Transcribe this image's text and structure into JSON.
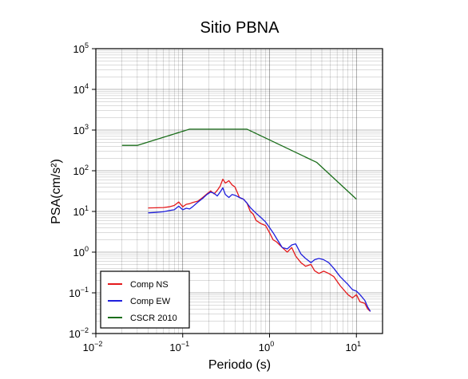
{
  "chart_data": {
    "type": "line",
    "title": "Sitio PBNA",
    "xlabel": "Periodo (s)",
    "ylabel": "PSA(cm/s²)",
    "x_scale": "log",
    "y_scale": "log",
    "xlim": [
      0.01,
      20
    ],
    "ylim": [
      0.01,
      100000
    ],
    "x_ticks": [
      {
        "value": 0.01,
        "base": "10",
        "exp": "−2"
      },
      {
        "value": 0.1,
        "base": "10",
        "exp": "−1"
      },
      {
        "value": 1,
        "base": "10",
        "exp": "0"
      },
      {
        "value": 10,
        "base": "10",
        "exp": "1"
      }
    ],
    "y_ticks": [
      {
        "value": 0.01,
        "base": "10",
        "exp": "−2"
      },
      {
        "value": 0.1,
        "base": "10",
        "exp": "−1"
      },
      {
        "value": 1,
        "base": "10",
        "exp": "0"
      },
      {
        "value": 10,
        "base": "10",
        "exp": "1"
      },
      {
        "value": 100,
        "base": "10",
        "exp": "2"
      },
      {
        "value": 1000,
        "base": "10",
        "exp": "3"
      },
      {
        "value": 10000,
        "base": "10",
        "exp": "4"
      },
      {
        "value": 100000,
        "base": "10",
        "exp": "5"
      }
    ],
    "grid": true,
    "legend_position": "bottom-left",
    "series": [
      {
        "name": "Comp NS",
        "color": "#e41a1c",
        "points": [
          [
            0.04,
            12.2
          ],
          [
            0.05,
            12.3
          ],
          [
            0.06,
            12.5
          ],
          [
            0.07,
            13.0
          ],
          [
            0.08,
            14.0
          ],
          [
            0.09,
            17.0
          ],
          [
            0.1,
            13.0
          ],
          [
            0.11,
            15.0
          ],
          [
            0.12,
            15.5
          ],
          [
            0.13,
            16.5
          ],
          [
            0.15,
            18.0
          ],
          [
            0.17,
            22.0
          ],
          [
            0.19,
            27.0
          ],
          [
            0.21,
            32.0
          ],
          [
            0.23,
            27.0
          ],
          [
            0.25,
            33.0
          ],
          [
            0.27,
            42.0
          ],
          [
            0.29,
            62.0
          ],
          [
            0.31,
            50.0
          ],
          [
            0.34,
            57.0
          ],
          [
            0.37,
            45.0
          ],
          [
            0.4,
            40.0
          ],
          [
            0.45,
            22.0
          ],
          [
            0.5,
            20.0
          ],
          [
            0.55,
            16.0
          ],
          [
            0.6,
            10.0
          ],
          [
            0.65,
            8.5
          ],
          [
            0.7,
            6.0
          ],
          [
            0.8,
            5.0
          ],
          [
            0.9,
            4.5
          ],
          [
            1.0,
            3.0
          ],
          [
            1.1,
            2.0
          ],
          [
            1.2,
            1.8
          ],
          [
            1.4,
            1.3
          ],
          [
            1.6,
            1.0
          ],
          [
            1.8,
            1.3
          ],
          [
            2.0,
            0.8
          ],
          [
            2.3,
            0.55
          ],
          [
            2.6,
            0.45
          ],
          [
            3.0,
            0.5
          ],
          [
            3.3,
            0.35
          ],
          [
            3.7,
            0.3
          ],
          [
            4.2,
            0.34
          ],
          [
            4.8,
            0.3
          ],
          [
            5.5,
            0.25
          ],
          [
            6.5,
            0.15
          ],
          [
            8.0,
            0.09
          ],
          [
            9.0,
            0.075
          ],
          [
            10.0,
            0.09
          ],
          [
            11.0,
            0.06
          ],
          [
            12.5,
            0.055
          ],
          [
            13.5,
            0.04
          ],
          [
            14.5,
            0.035
          ]
        ]
      },
      {
        "name": "Comp EW",
        "color": "#1f1fdd",
        "points": [
          [
            0.04,
            9.2
          ],
          [
            0.05,
            9.5
          ],
          [
            0.06,
            9.8
          ],
          [
            0.07,
            10.5
          ],
          [
            0.08,
            11.0
          ],
          [
            0.09,
            13.5
          ],
          [
            0.1,
            11.0
          ],
          [
            0.11,
            12.0
          ],
          [
            0.12,
            11.5
          ],
          [
            0.13,
            13.0
          ],
          [
            0.15,
            17.0
          ],
          [
            0.17,
            21.0
          ],
          [
            0.19,
            26.0
          ],
          [
            0.21,
            30.0
          ],
          [
            0.23,
            28.0
          ],
          [
            0.25,
            24.0
          ],
          [
            0.27,
            30.0
          ],
          [
            0.29,
            38.0
          ],
          [
            0.31,
            26.0
          ],
          [
            0.34,
            22.0
          ],
          [
            0.37,
            26.0
          ],
          [
            0.4,
            25.0
          ],
          [
            0.45,
            22.0
          ],
          [
            0.5,
            20.0
          ],
          [
            0.55,
            16.0
          ],
          [
            0.6,
            12.5
          ],
          [
            0.65,
            10.5
          ],
          [
            0.7,
            9.0
          ],
          [
            0.8,
            7.0
          ],
          [
            0.9,
            5.5
          ],
          [
            1.0,
            4.0
          ],
          [
            1.1,
            3.0
          ],
          [
            1.2,
            2.2
          ],
          [
            1.4,
            1.3
          ],
          [
            1.6,
            1.2
          ],
          [
            1.8,
            1.5
          ],
          [
            2.0,
            1.6
          ],
          [
            2.3,
            0.9
          ],
          [
            2.6,
            0.7
          ],
          [
            3.0,
            0.55
          ],
          [
            3.3,
            0.65
          ],
          [
            3.7,
            0.7
          ],
          [
            4.2,
            0.65
          ],
          [
            4.8,
            0.55
          ],
          [
            5.5,
            0.4
          ],
          [
            6.5,
            0.25
          ],
          [
            8.0,
            0.16
          ],
          [
            9.0,
            0.12
          ],
          [
            10.0,
            0.11
          ],
          [
            11.0,
            0.09
          ],
          [
            12.5,
            0.065
          ],
          [
            13.5,
            0.045
          ],
          [
            14.5,
            0.035
          ]
        ]
      },
      {
        "name": "CSCR 2010",
        "color": "#1b6e1b",
        "points": [
          [
            0.02,
            420
          ],
          [
            0.03,
            420
          ],
          [
            0.12,
            1050
          ],
          [
            0.55,
            1050
          ],
          [
            3.5,
            160
          ],
          [
            10.0,
            20
          ]
        ]
      }
    ]
  }
}
